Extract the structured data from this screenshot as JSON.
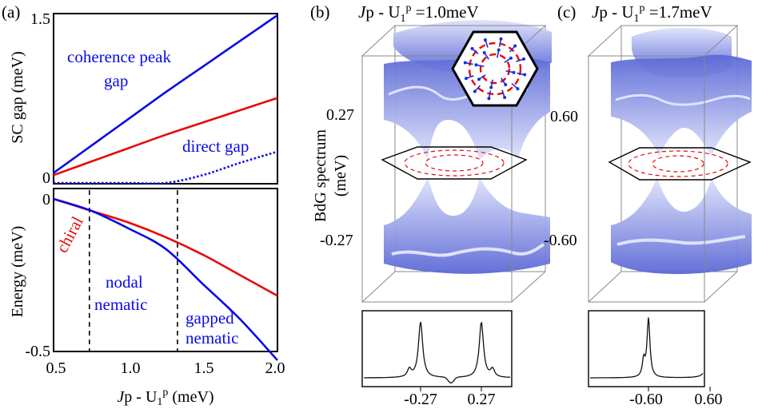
{
  "panels": {
    "a": {
      "label": "(a)",
      "xaxis": {
        "label_J": "J",
        "label_rest": "p - U",
        "label_sub": "1",
        "label_sup": "p",
        "label_unit": " (meV)",
        "ticks": [
          "0.5",
          "1.0",
          "1.5",
          "2.0"
        ]
      },
      "top": {
        "ylabel": "SC gap (meV)",
        "ticks": [
          "0",
          "1.5"
        ],
        "annotations": {
          "coherence_line1": "coherence peak",
          "coherence_line2": "gap",
          "direct": "direct gap"
        }
      },
      "bottom": {
        "ylabel": "Energy (meV)",
        "ticks": [
          "0",
          "-0.5"
        ],
        "annotations": {
          "chiral": "chiral",
          "nodal_line1": "nodal",
          "nodal_line2": "nematic",
          "gapped_line1": "gapped",
          "gapped_line2": "nematic"
        }
      }
    },
    "b": {
      "label": "(b)",
      "title_J": "J",
      "title_rest": "p - U",
      "title_sub": "1",
      "title_sup": "p",
      "title_val": " =1.0meV",
      "ylabel_line1": "BdG spectrum",
      "ylabel_line2": "(meV)",
      "ticks": [
        "0.27",
        "-0.27"
      ],
      "dos_ticks": [
        "-0.27",
        "0.27"
      ]
    },
    "c": {
      "label": "(c)",
      "title_J": "J",
      "title_rest": "p - U",
      "title_sub": "1",
      "title_sup": "p",
      "title_val": " =1.7meV",
      "ticks": [
        "0.60",
        "-0.60"
      ],
      "dos_ticks": [
        "-0.60",
        "0.60"
      ]
    }
  },
  "colors": {
    "blue": "#0a0ae6",
    "red": "#e60a0a",
    "surface": "#6a78e0",
    "axis": "#000000",
    "box": "#888888"
  },
  "chart_data": [
    {
      "type": "line",
      "panel": "a-top",
      "xlabel": "J^p - U1^p (meV)",
      "ylabel": "SC gap (meV)",
      "xlim": [
        0.5,
        2.0
      ],
      "ylim": [
        0,
        1.5
      ],
      "x": [
        0.5,
        0.75,
        1.0,
        1.25,
        1.5,
        1.75,
        2.0
      ],
      "series": [
        {
          "name": "coherence peak gap",
          "color": "#0a0ae6",
          "style": "solid",
          "values": [
            0.09,
            0.33,
            0.57,
            0.81,
            1.04,
            1.27,
            1.5
          ]
        },
        {
          "name": "direct gap",
          "color": "#0a0ae6",
          "style": "dotted",
          "values": [
            0.0,
            0.0,
            0.0,
            0.0,
            0.07,
            0.18,
            0.28
          ]
        },
        {
          "color": "#e60a0a",
          "style": "solid",
          "values": [
            0.07,
            0.19,
            0.31,
            0.43,
            0.54,
            0.65,
            0.76
          ]
        }
      ]
    },
    {
      "type": "line",
      "panel": "a-bottom",
      "xlabel": "J^p - U1^p (meV)",
      "ylabel": "Energy (meV)",
      "xlim": [
        0.5,
        2.0
      ],
      "ylim": [
        -0.5,
        0.05
      ],
      "x": [
        0.5,
        0.75,
        1.0,
        1.25,
        1.5,
        1.75,
        2.0
      ],
      "vlines": [
        0.74,
        1.33
      ],
      "series": [
        {
          "name": "chiral",
          "color": "#e60a0a",
          "style": "solid",
          "values": [
            0.02,
            -0.02,
            -0.06,
            -0.11,
            -0.17,
            -0.24,
            -0.31
          ]
        },
        {
          "color": "#0a0ae6",
          "style": "solid",
          "values": [
            0.02,
            -0.02,
            -0.08,
            -0.15,
            -0.27,
            -0.39,
            -0.53
          ]
        }
      ]
    }
  ]
}
